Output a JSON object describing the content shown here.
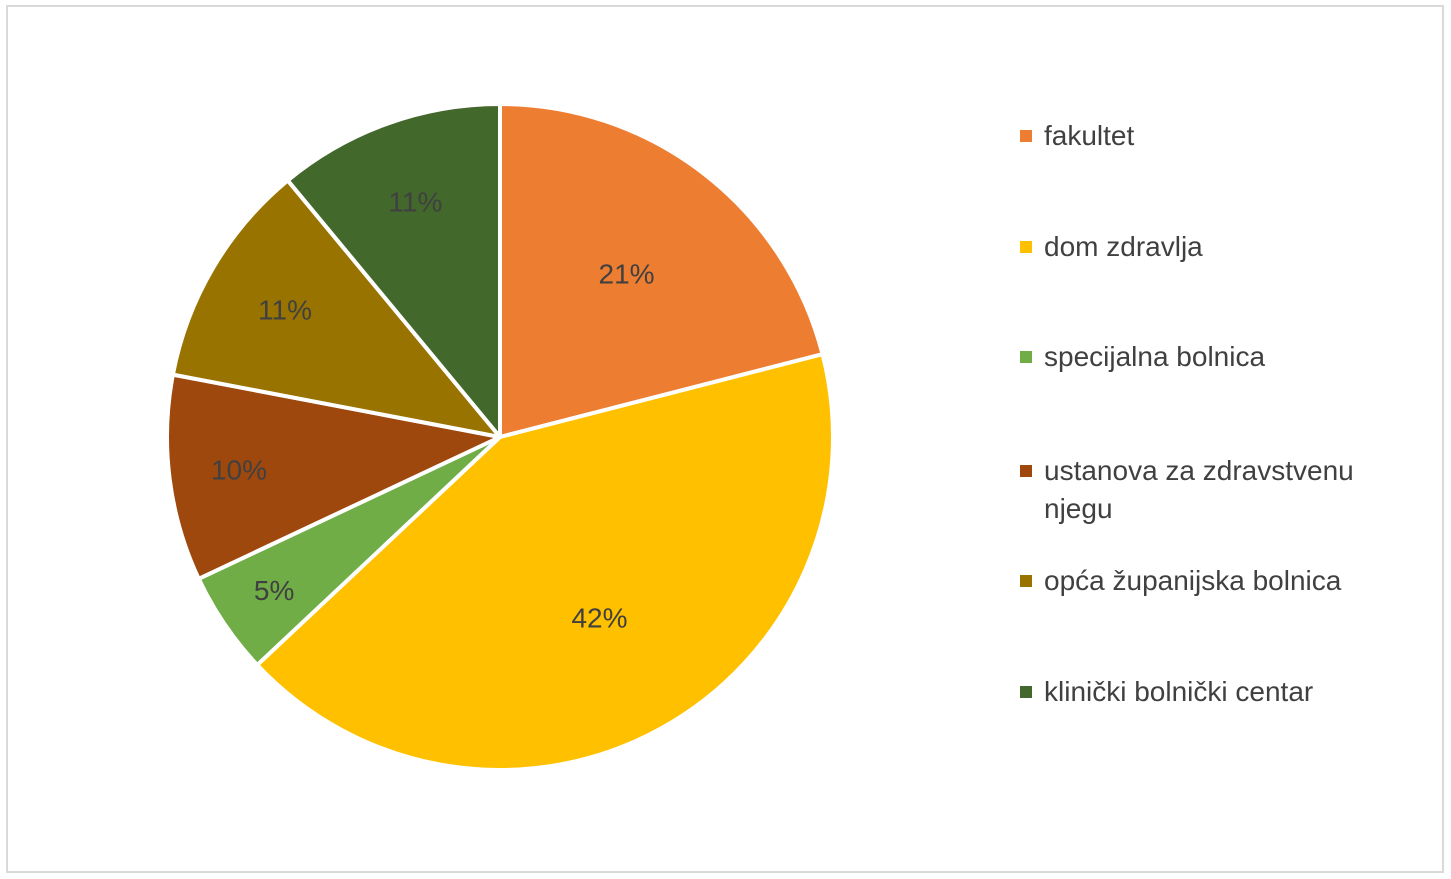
{
  "chart_data": {
    "type": "pie",
    "title": "",
    "start_angle": "12 o'clock",
    "direction": "clockwise",
    "legend_position": "right",
    "slices": [
      {
        "name": "fakultet",
        "value": 21,
        "label": "21%",
        "color": "#ED7D31"
      },
      {
        "name": "dom zdravlja",
        "value": 42,
        "label": "42%",
        "color": "#FFC000"
      },
      {
        "name": "specijalna bolnica",
        "value": 5,
        "label": "5%",
        "color": "#70AD47"
      },
      {
        "name": "ustanova za zdravstvenu njegu",
        "value": 10,
        "label": "10%",
        "color": "#9E480E"
      },
      {
        "name": "opća županijska bolnica",
        "value": 11,
        "label": "11%",
        "color": "#997300"
      },
      {
        "name": "klinički bolnički centar",
        "value": 11,
        "label": "11%",
        "color": "#43682B"
      }
    ]
  }
}
